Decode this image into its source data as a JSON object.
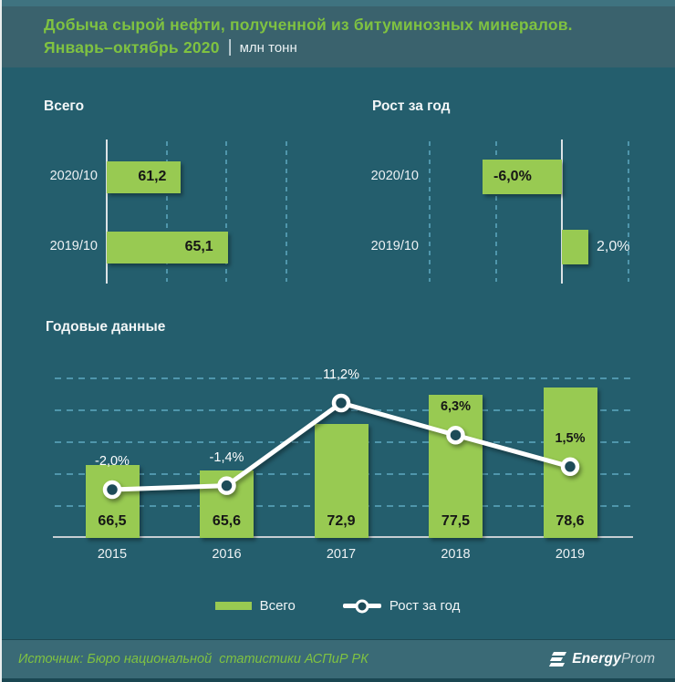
{
  "header": {
    "title": "Добыча сырой нефти, полученной из битуминозных минералов.",
    "subtitle_period": "Январь–октябрь 2020",
    "subtitle_separator": "|",
    "subtitle_unit": "млн тонн"
  },
  "chart_data": [
    {
      "id": "total",
      "type": "bar",
      "orientation": "horizontal",
      "title": "Всего",
      "unit": "млн тонн",
      "categories": [
        "2020/10",
        "2019/10"
      ],
      "values": [
        61.2,
        65.1
      ],
      "value_labels": [
        "61,2",
        "65,1"
      ],
      "xlim": [
        55,
        72.5
      ],
      "gridlines": [
        60,
        65,
        70
      ],
      "grid": "dashed-vertical"
    },
    {
      "id": "growth",
      "type": "bar",
      "orientation": "horizontal",
      "title": "Рост за год",
      "unit": "%",
      "categories": [
        "2020/10",
        "2019/10"
      ],
      "values": [
        -6.0,
        2.0
      ],
      "value_labels": [
        "-6,0%",
        "2,0%"
      ],
      "xlim": [
        -10,
        5.5
      ],
      "gridlines": [
        -10,
        -5,
        0,
        5
      ],
      "grid": "dashed-vertical"
    },
    {
      "id": "annual",
      "type": "bar+line",
      "title": "Годовые данные",
      "categories": [
        "2015",
        "2016",
        "2017",
        "2018",
        "2019"
      ],
      "series": [
        {
          "name": "Всего",
          "type": "bar",
          "unit": "млн тонн",
          "values": [
            66.5,
            65.6,
            72.9,
            77.5,
            78.6
          ],
          "value_labels": [
            "66,5",
            "65,6",
            "72,9",
            "77,5",
            "78,6"
          ]
        },
        {
          "name": "Рост за год",
          "type": "line",
          "unit": "%",
          "values": [
            -2.0,
            -1.4,
            11.2,
            6.3,
            1.5
          ],
          "value_labels": [
            "-2,0%",
            "-1,4%",
            "11,2%",
            "6,3%",
            "1,5%"
          ]
        }
      ],
      "ylim_primary": [
        55,
        80
      ],
      "gridlines": [
        60,
        65,
        70,
        75,
        80
      ],
      "grid": "dashed-horizontal",
      "legend_position": "bottom"
    }
  ],
  "footer": {
    "source": "Источник: Бюро национальной  статистики АСПиР РК",
    "logo_bold": "Energy",
    "logo_light": "Prom"
  },
  "colors": {
    "main_bg": "#245e6d",
    "header_bg": "#3a626d",
    "top_strip": "#3f7380",
    "footer_bg": "#3a6a76",
    "bottom_strip": "#1a4752",
    "green_text": "#7fc241",
    "bar_green": "#98ca52",
    "grid": "#4f96ac",
    "axis_line": "#dce3e6",
    "baseline": "#c7ced2",
    "marker_fill": "#1d4b58",
    "dark_text": "#161616",
    "line_white": "#ffffff"
  }
}
